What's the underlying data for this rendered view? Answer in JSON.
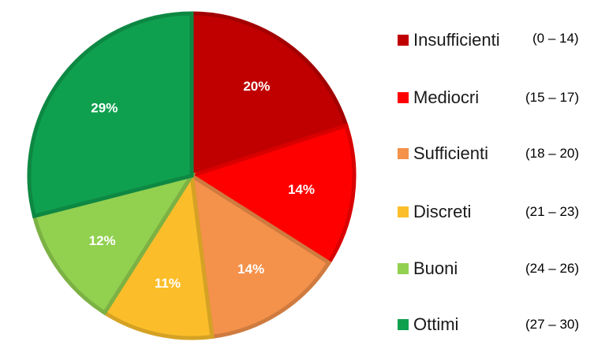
{
  "chart_data": {
    "type": "pie",
    "slices": [
      {
        "label": "Insufficienti",
        "range": "(0 – 14)",
        "value": 20,
        "value_label": "20%",
        "color": "#C00000"
      },
      {
        "label": "Mediocri",
        "range": "(15 – 17)",
        "value": 14,
        "value_label": "14%",
        "color": "#FF0000"
      },
      {
        "label": "Sufficienti",
        "range": "(18 – 20)",
        "value": 14,
        "value_label": "14%",
        "color": "#F4914B"
      },
      {
        "label": "Discreti",
        "range": "(21 – 23)",
        "value": 11,
        "value_label": "11%",
        "color": "#FBBE2A"
      },
      {
        "label": "Buoni",
        "range": "(24 – 26)",
        "value": 12,
        "value_label": "12%",
        "color": "#92D050"
      },
      {
        "label": "Ottimi",
        "range": "(27 – 30)",
        "value": 29,
        "value_label": "29%",
        "color": "#0FA04F"
      }
    ],
    "legend_position": "right",
    "start_angle": "12 o'clock",
    "direction": "clockwise"
  }
}
